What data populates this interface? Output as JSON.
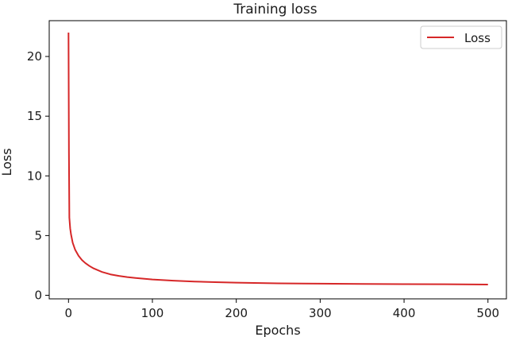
{
  "chart_data": {
    "type": "line",
    "title": "Training loss",
    "xlabel": "Epochs",
    "ylabel": "Loss",
    "xlim": [
      -23,
      522
    ],
    "ylim": [
      -0.3,
      23
    ],
    "xticks": [
      0,
      100,
      200,
      300,
      400,
      500
    ],
    "yticks": [
      0,
      5,
      10,
      15,
      20
    ],
    "grid": false,
    "legend_position": "top-right",
    "series": [
      {
        "name": "Loss",
        "color": "#d62728",
        "x": [
          0,
          0.5,
          1,
          2,
          3,
          5,
          8,
          12,
          16,
          20,
          25,
          30,
          40,
          50,
          60,
          70,
          80,
          100,
          125,
          150,
          175,
          200,
          250,
          300,
          350,
          400,
          450,
          500
        ],
        "y": [
          22.0,
          12.0,
          6.5,
          5.6,
          5.1,
          4.4,
          3.8,
          3.3,
          2.95,
          2.7,
          2.45,
          2.25,
          1.95,
          1.75,
          1.62,
          1.52,
          1.45,
          1.32,
          1.22,
          1.15,
          1.1,
          1.06,
          1.0,
          0.97,
          0.95,
          0.93,
          0.92,
          0.9
        ]
      }
    ]
  }
}
